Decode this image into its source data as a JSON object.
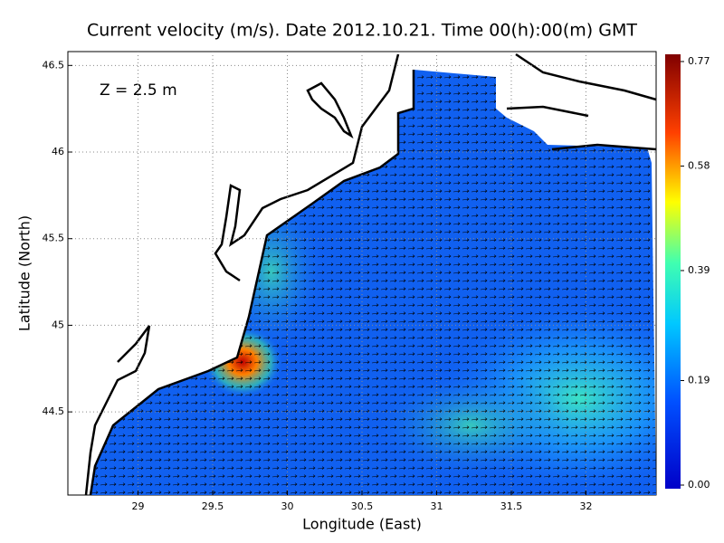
{
  "chart_data": {
    "type": "map",
    "title": "Current velocity (m/s). Date 2012.10.21. Time 00(h):00(m) GMT",
    "annotation": "Z = 2.5 m",
    "xlabel": "Longitude (East)",
    "ylabel": "Latitude (North)",
    "xlim": [
      28.53,
      32.47
    ],
    "ylim": [
      44.02,
      46.58
    ],
    "xticks": [
      29,
      29.5,
      30,
      30.5,
      31,
      31.5,
      32
    ],
    "yticks": [
      44.5,
      45,
      45.5,
      46,
      46.5
    ],
    "grid": true,
    "colorbar": {
      "lim": [
        0,
        0.77
      ],
      "ticks": [
        {
          "value": 0,
          "label": "0.00"
        },
        0.19,
        0.39,
        0.58,
        0.77
      ]
    }
  }
}
